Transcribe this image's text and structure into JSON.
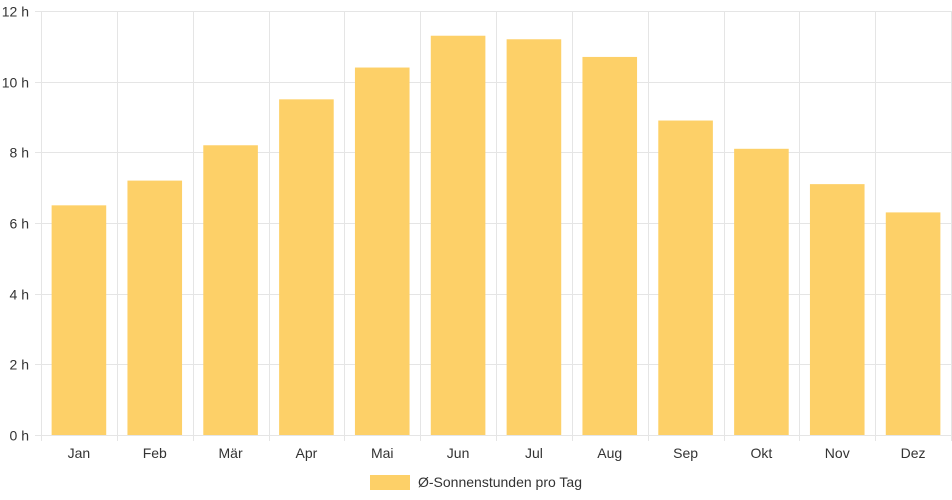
{
  "chart_data": {
    "type": "bar",
    "categories": [
      "Jan",
      "Feb",
      "Mär",
      "Apr",
      "Mai",
      "Jun",
      "Jul",
      "Aug",
      "Sep",
      "Okt",
      "Nov",
      "Dez"
    ],
    "series": [
      {
        "name": "Ø-Sonnenstunden pro Tag",
        "values": [
          6.5,
          7.2,
          8.2,
          9.5,
          10.4,
          11.3,
          11.2,
          10.7,
          8.9,
          8.1,
          7.1,
          6.3
        ]
      }
    ],
    "ylim": [
      0,
      12
    ],
    "yticks": [
      0,
      2,
      4,
      6,
      8,
      10,
      12
    ],
    "ytick_labels": [
      "0 h",
      "2 h",
      "4 h",
      "6 h",
      "8 h",
      "10 h",
      "12 h"
    ],
    "grid": true,
    "legend_position": "bottom",
    "colors": {
      "bar": "#fdd068",
      "grid": "#e5e5e5",
      "text": "#333333"
    }
  }
}
